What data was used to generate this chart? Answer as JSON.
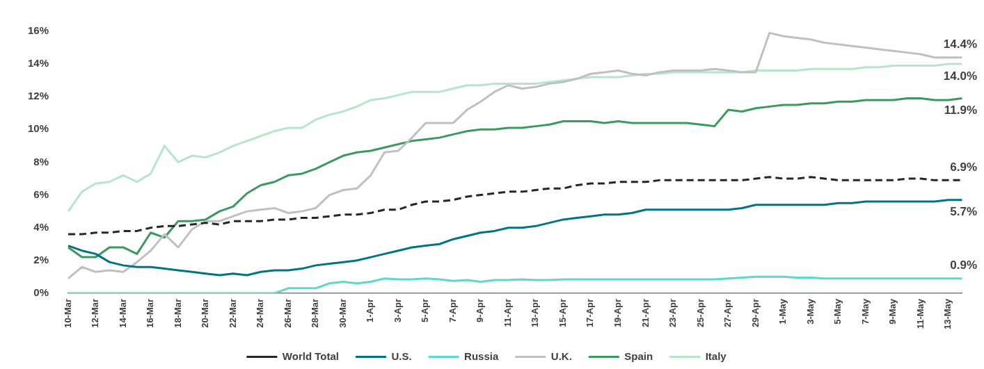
{
  "chart_data": {
    "type": "line",
    "marker": "none",
    "legend": "bottom",
    "categories": [
      "10-Mar",
      null,
      "12-Mar",
      null,
      "14-Mar",
      null,
      "16-Mar",
      null,
      "18-Mar",
      null,
      "20-Mar",
      null,
      "22-Mar",
      null,
      "24-Mar",
      null,
      "26-Mar",
      null,
      "28-Mar",
      null,
      "30-Mar",
      null,
      "1-Apr",
      null,
      "3-Apr",
      null,
      "5-Apr",
      null,
      "7-Apr",
      null,
      "9-Apr",
      null,
      "11-Apr",
      null,
      "13-Apr",
      null,
      "15-Apr",
      null,
      "17-Apr",
      null,
      "19-Apr",
      null,
      "21-Apr",
      null,
      "23-Apr",
      null,
      "25-Apr",
      null,
      "27-Apr",
      null,
      "29-Apr",
      null,
      "1-May",
      null,
      "3-May",
      null,
      "5-May",
      null,
      "7-May",
      null,
      "9-May",
      null,
      "11-May",
      null,
      "13-May",
      null
    ],
    "ylim": [
      0,
      16
    ],
    "yticks": [
      {
        "value": 0,
        "label": "0%"
      },
      {
        "value": 2,
        "label": "2%"
      },
      {
        "value": 4,
        "label": "4%"
      },
      {
        "value": 6,
        "label": "6%"
      },
      {
        "value": 8,
        "label": "8%"
      },
      {
        "value": 10,
        "label": "10%"
      },
      {
        "value": 12,
        "label": "12%"
      },
      {
        "value": 14,
        "label": "14%"
      },
      {
        "value": 16,
        "label": "16%"
      }
    ],
    "series": [
      {
        "name": "World Total",
        "color": "#262626",
        "line_style": "dashed",
        "values": [
          3.6,
          3.6,
          3.7,
          3.7,
          3.8,
          3.8,
          4.0,
          4.1,
          4.1,
          4.2,
          4.3,
          4.2,
          4.4,
          4.4,
          4.4,
          4.5,
          4.5,
          4.6,
          4.6,
          4.7,
          4.8,
          4.8,
          4.9,
          5.1,
          5.1,
          5.4,
          5.6,
          5.6,
          5.7,
          5.9,
          6.0,
          6.1,
          6.2,
          6.2,
          6.3,
          6.4,
          6.4,
          6.6,
          6.7,
          6.7,
          6.8,
          6.8,
          6.8,
          6.9,
          6.9,
          6.9,
          6.9,
          6.9,
          6.9,
          6.9,
          7.0,
          7.1,
          7.0,
          7.0,
          7.1,
          7.0,
          6.9,
          6.9,
          6.9,
          6.9,
          6.9,
          7.0,
          7.0,
          6.9,
          6.9,
          6.9
        ],
        "value_labels": [
          null,
          null,
          null,
          null,
          null,
          null,
          null,
          null,
          null,
          null,
          null,
          null,
          null,
          null,
          null,
          null,
          null,
          null,
          null,
          null,
          null,
          null,
          null,
          null,
          null,
          null,
          null,
          null,
          null,
          null,
          null,
          null,
          null,
          null,
          null,
          null,
          null,
          null,
          null,
          null,
          null,
          null,
          null,
          null,
          null,
          null,
          null,
          null,
          null,
          null,
          null,
          null,
          null,
          null,
          null,
          null,
          null,
          null,
          null,
          null,
          null,
          null,
          null,
          null,
          null,
          "6.9%"
        ]
      },
      {
        "name": "U.S.",
        "color": "#007480",
        "values": [
          2.9,
          2.6,
          2.4,
          1.9,
          1.7,
          1.6,
          1.6,
          1.5,
          1.4,
          1.3,
          1.2,
          1.1,
          1.2,
          1.1,
          1.3,
          1.4,
          1.4,
          1.5,
          1.7,
          1.8,
          1.9,
          2.0,
          2.2,
          2.4,
          2.6,
          2.8,
          2.9,
          3.0,
          3.3,
          3.5,
          3.7,
          3.8,
          4.0,
          4.0,
          4.1,
          4.3,
          4.5,
          4.6,
          4.7,
          4.8,
          4.8,
          4.9,
          5.1,
          5.1,
          5.1,
          5.1,
          5.1,
          5.1,
          5.1,
          5.2,
          5.4,
          5.4,
          5.4,
          5.4,
          5.4,
          5.4,
          5.5,
          5.5,
          5.6,
          5.6,
          5.6,
          5.6,
          5.6,
          5.6,
          5.7,
          5.7
        ],
        "value_labels": [
          null,
          null,
          null,
          null,
          null,
          null,
          null,
          null,
          null,
          null,
          null,
          null,
          null,
          null,
          null,
          null,
          null,
          null,
          null,
          null,
          null,
          null,
          null,
          null,
          null,
          null,
          null,
          null,
          null,
          null,
          null,
          null,
          null,
          null,
          null,
          null,
          null,
          null,
          null,
          null,
          null,
          null,
          null,
          null,
          null,
          null,
          null,
          null,
          null,
          null,
          null,
          null,
          null,
          null,
          null,
          null,
          null,
          null,
          null,
          null,
          null,
          null,
          null,
          null,
          null,
          "5.7%"
        ]
      },
      {
        "name": "Russia",
        "color": "#5ed8c8",
        "values": [
          0,
          0,
          0,
          0,
          0,
          0,
          0,
          0,
          0,
          0,
          0,
          0,
          0,
          0,
          0,
          0,
          0.3,
          0.3,
          0.3,
          0.6,
          0.7,
          0.6,
          0.7,
          0.9,
          0.85,
          0.85,
          0.9,
          0.85,
          0.75,
          0.8,
          0.7,
          0.8,
          0.8,
          0.85,
          0.8,
          0.8,
          0.85,
          0.85,
          0.85,
          0.85,
          0.85,
          0.85,
          0.85,
          0.85,
          0.85,
          0.85,
          0.85,
          0.85,
          0.9,
          0.95,
          1.0,
          1.0,
          1.0,
          0.95,
          0.95,
          0.9,
          0.9,
          0.9,
          0.9,
          0.9,
          0.9,
          0.9,
          0.9,
          0.9,
          0.9,
          0.9
        ],
        "value_labels": [
          null,
          null,
          null,
          null,
          null,
          null,
          null,
          null,
          null,
          null,
          null,
          null,
          null,
          null,
          null,
          null,
          null,
          null,
          null,
          null,
          null,
          null,
          null,
          null,
          null,
          null,
          null,
          null,
          null,
          null,
          null,
          null,
          null,
          null,
          null,
          null,
          null,
          null,
          null,
          null,
          null,
          null,
          null,
          null,
          null,
          null,
          null,
          null,
          null,
          null,
          null,
          null,
          null,
          null,
          null,
          null,
          null,
          null,
          null,
          null,
          null,
          null,
          null,
          null,
          null,
          "0.9%"
        ]
      },
      {
        "name": "U.K.",
        "color": "#c0c0c0",
        "values": [
          0.9,
          1.6,
          1.3,
          1.4,
          1.3,
          1.9,
          2.6,
          3.6,
          2.8,
          3.9,
          4.4,
          4.4,
          4.7,
          5.0,
          5.1,
          5.2,
          4.9,
          5.0,
          5.2,
          6.0,
          6.3,
          6.4,
          7.2,
          8.6,
          8.7,
          9.5,
          10.4,
          10.4,
          10.4,
          11.2,
          11.7,
          12.3,
          12.7,
          12.5,
          12.6,
          12.8,
          12.9,
          13.1,
          13.4,
          13.5,
          13.6,
          13.4,
          13.3,
          13.5,
          13.6,
          13.6,
          13.6,
          13.7,
          13.6,
          13.5,
          13.5,
          15.9,
          15.7,
          15.6,
          15.5,
          15.3,
          15.2,
          15.1,
          15.0,
          14.9,
          14.8,
          14.7,
          14.6,
          14.4,
          14.4,
          14.4
        ],
        "value_labels": [
          null,
          null,
          null,
          null,
          null,
          null,
          null,
          null,
          null,
          null,
          null,
          null,
          null,
          null,
          null,
          null,
          null,
          null,
          null,
          null,
          null,
          null,
          null,
          null,
          null,
          null,
          null,
          null,
          null,
          null,
          null,
          null,
          null,
          null,
          null,
          null,
          null,
          null,
          null,
          null,
          null,
          null,
          null,
          null,
          null,
          null,
          null,
          null,
          null,
          null,
          null,
          null,
          null,
          null,
          null,
          null,
          null,
          null,
          null,
          null,
          null,
          null,
          null,
          null,
          null,
          "14.4%"
        ]
      },
      {
        "name": "Spain",
        "color": "#3a9a5e",
        "values": [
          2.8,
          2.2,
          2.2,
          2.8,
          2.8,
          2.4,
          3.7,
          3.4,
          4.4,
          4.4,
          4.5,
          5.0,
          5.3,
          6.1,
          6.6,
          6.8,
          7.2,
          7.3,
          7.6,
          8.0,
          8.4,
          8.6,
          8.7,
          8.9,
          9.1,
          9.3,
          9.4,
          9.5,
          9.7,
          9.9,
          10.0,
          10.0,
          10.1,
          10.1,
          10.2,
          10.3,
          10.5,
          10.5,
          10.5,
          10.4,
          10.5,
          10.4,
          10.4,
          10.4,
          10.4,
          10.4,
          10.3,
          10.2,
          11.2,
          11.1,
          11.3,
          11.4,
          11.5,
          11.5,
          11.6,
          11.6,
          11.7,
          11.7,
          11.8,
          11.8,
          11.8,
          11.9,
          11.9,
          11.8,
          11.8,
          11.9
        ],
        "value_labels": [
          null,
          null,
          null,
          null,
          null,
          null,
          null,
          null,
          null,
          null,
          null,
          null,
          null,
          null,
          null,
          null,
          null,
          null,
          null,
          null,
          null,
          null,
          null,
          null,
          null,
          null,
          null,
          null,
          null,
          null,
          null,
          null,
          null,
          null,
          null,
          null,
          null,
          null,
          null,
          null,
          null,
          null,
          null,
          null,
          null,
          null,
          null,
          null,
          null,
          null,
          null,
          null,
          null,
          null,
          null,
          null,
          null,
          null,
          null,
          null,
          null,
          null,
          null,
          null,
          null,
          "11.9%"
        ]
      },
      {
        "name": "Italy",
        "color": "#b5e6cc",
        "values": [
          5.0,
          6.2,
          6.7,
          6.8,
          7.2,
          6.8,
          7.3,
          9.0,
          8.0,
          8.4,
          8.3,
          8.6,
          9.0,
          9.3,
          9.6,
          9.9,
          10.1,
          10.1,
          10.6,
          10.9,
          11.1,
          11.4,
          11.8,
          11.9,
          12.1,
          12.3,
          12.3,
          12.3,
          12.5,
          12.7,
          12.7,
          12.8,
          12.8,
          12.8,
          12.8,
          12.9,
          13.0,
          13.1,
          13.2,
          13.2,
          13.2,
          13.3,
          13.4,
          13.4,
          13.5,
          13.5,
          13.5,
          13.5,
          13.5,
          13.5,
          13.6,
          13.6,
          13.6,
          13.6,
          13.7,
          13.7,
          13.7,
          13.7,
          13.8,
          13.8,
          13.9,
          13.9,
          13.9,
          13.9,
          14.0,
          14.0
        ],
        "value_labels": [
          null,
          null,
          null,
          null,
          null,
          null,
          null,
          null,
          null,
          null,
          null,
          null,
          null,
          null,
          null,
          null,
          null,
          null,
          null,
          null,
          null,
          null,
          null,
          null,
          null,
          null,
          null,
          null,
          null,
          null,
          null,
          null,
          null,
          null,
          null,
          null,
          null,
          null,
          null,
          null,
          null,
          null,
          null,
          null,
          null,
          null,
          null,
          null,
          null,
          null,
          null,
          null,
          null,
          null,
          null,
          null,
          null,
          null,
          null,
          null,
          null,
          null,
          null,
          null,
          null,
          "14.0%"
        ]
      }
    ]
  }
}
